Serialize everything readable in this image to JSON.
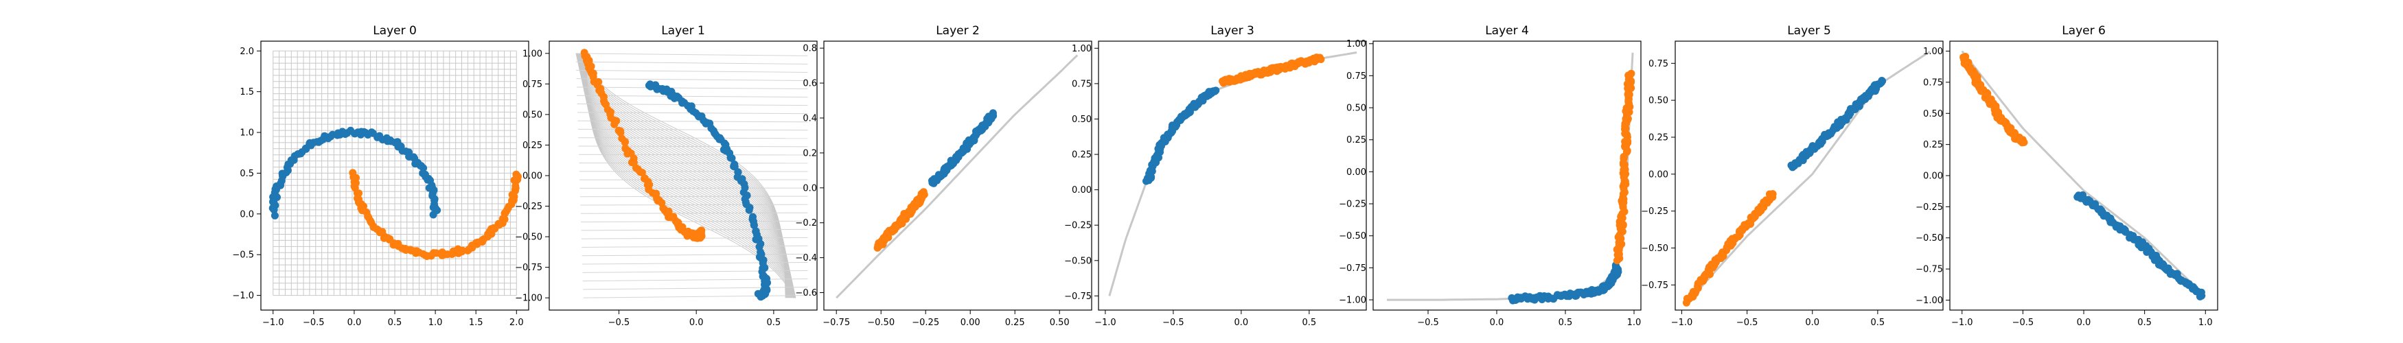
{
  "chart_data": [
    {
      "type": "scatter",
      "title": "Layer 0",
      "xlim": [
        -1.15,
        2.15
      ],
      "ylim": [
        -1.18,
        2.12
      ],
      "xticks": [
        -1.0,
        -0.5,
        0.0,
        0.5,
        1.0,
        1.5,
        2.0
      ],
      "yticks": [
        -1.0,
        -0.5,
        0.0,
        0.5,
        1.0,
        1.5,
        2.0
      ],
      "grid": {
        "x": [
          -1,
          2
        ],
        "y": [
          -1,
          2
        ],
        "n": 41
      },
      "curve": null,
      "series": [
        {
          "color": "#1f77b4",
          "shape": "upper_moon"
        },
        {
          "color": "#ff7f0e",
          "shape": "lower_moon"
        }
      ]
    },
    {
      "type": "scatter",
      "title": "Layer 1",
      "xlim": [
        -0.95,
        0.78
      ],
      "ylim": [
        -1.1,
        1.1
      ],
      "xticks": [
        -0.5,
        0.0,
        0.5
      ],
      "yticks": [
        -1.0,
        -0.75,
        -0.5,
        -0.25,
        0.0,
        0.25,
        0.5,
        0.75,
        1.0
      ],
      "grid": "warped",
      "series": [
        {
          "color": "#1f77b4",
          "x": [
            -0.31,
            -0.2,
            -0.1,
            0.0,
            0.1,
            0.18,
            0.25,
            0.31,
            0.36,
            0.4,
            0.43,
            0.45,
            0.44,
            0.41
          ],
          "y": [
            0.75,
            0.7,
            0.62,
            0.52,
            0.39,
            0.25,
            0.08,
            -0.12,
            -0.35,
            -0.55,
            -0.75,
            -0.9,
            -0.97,
            -0.98
          ]
        },
        {
          "color": "#ff7f0e",
          "x": [
            -0.72,
            -0.68,
            -0.62,
            -0.55,
            -0.47,
            -0.38,
            -0.29,
            -0.2,
            -0.12,
            -0.05,
            0.0,
            0.03,
            0.02
          ],
          "y": [
            0.99,
            0.88,
            0.7,
            0.5,
            0.28,
            0.06,
            -0.12,
            -0.28,
            -0.4,
            -0.48,
            -0.5,
            -0.49,
            -0.46
          ]
        }
      ]
    },
    {
      "type": "scatter",
      "title": "Layer 2",
      "xlim": [
        -0.82,
        0.68
      ],
      "ylim": [
        -0.7,
        0.84
      ],
      "xticks": [
        -0.75,
        -0.5,
        -0.25,
        0.0,
        0.25,
        0.5
      ],
      "yticks": [
        -0.6,
        -0.4,
        -0.2,
        0.0,
        0.2,
        0.4,
        0.6,
        0.8
      ],
      "curve": {
        "x": [
          -0.75,
          -0.5,
          -0.25,
          0.0,
          0.25,
          0.5,
          0.6
        ],
        "y": [
          -0.63,
          -0.37,
          -0.12,
          0.15,
          0.42,
          0.66,
          0.76
        ]
      },
      "series": [
        {
          "color": "#1f77b4",
          "x": [
            -0.22,
            -0.15,
            -0.08,
            0.0,
            0.07,
            0.13
          ],
          "y": [
            0.02,
            0.09,
            0.17,
            0.26,
            0.35,
            0.42
          ]
        },
        {
          "color": "#ff7f0e",
          "x": [
            -0.52,
            -0.45,
            -0.38,
            -0.31,
            -0.25
          ],
          "y": [
            -0.34,
            -0.26,
            -0.18,
            -0.1,
            -0.03
          ]
        }
      ]
    },
    {
      "type": "scatter",
      "title": "Layer 3",
      "xlim": [
        -1.05,
        0.92
      ],
      "ylim": [
        -0.85,
        1.05
      ],
      "xticks": [
        -1.0,
        -0.5,
        0.0,
        0.5
      ],
      "yticks": [
        -0.75,
        -0.5,
        -0.25,
        0.0,
        0.25,
        0.5,
        0.75,
        1.0
      ],
      "curve": {
        "x": [
          -0.97,
          -0.85,
          -0.7,
          -0.55,
          -0.4,
          -0.2,
          0.0,
          0.3,
          0.6,
          0.85
        ],
        "y": [
          -0.75,
          -0.35,
          0.05,
          0.37,
          0.56,
          0.7,
          0.77,
          0.85,
          0.93,
          0.97
        ]
      },
      "series": [
        {
          "color": "#1f77b4",
          "x": [
            -0.69,
            -0.64,
            -0.58,
            -0.5,
            -0.42,
            -0.34,
            -0.26,
            -0.19
          ],
          "y": [
            0.05,
            0.2,
            0.33,
            0.44,
            0.53,
            0.6,
            0.66,
            0.71
          ]
        },
        {
          "color": "#ff7f0e",
          "x": [
            -0.13,
            0.0,
            0.15,
            0.3,
            0.45,
            0.58
          ],
          "y": [
            0.76,
            0.79,
            0.83,
            0.86,
            0.9,
            0.93
          ]
        }
      ]
    },
    {
      "type": "scatter",
      "title": "Layer 4",
      "xlim": [
        -0.9,
        1.05
      ],
      "ylim": [
        -1.08,
        1.02
      ],
      "xticks": [
        -0.5,
        0.0,
        0.5,
        1.0
      ],
      "yticks": [
        -1.0,
        -0.75,
        -0.5,
        -0.25,
        0.0,
        0.25,
        0.5,
        0.75,
        1.0
      ],
      "curve": {
        "x": [
          -0.8,
          -0.4,
          0.0,
          0.4,
          0.7,
          0.85,
          0.92,
          0.95,
          0.97,
          0.99
        ],
        "y": [
          -1.0,
          -1.0,
          -0.995,
          -0.98,
          -0.93,
          -0.8,
          -0.5,
          0.0,
          0.5,
          0.93
        ]
      },
      "series": [
        {
          "color": "#1f77b4",
          "x": [
            0.1,
            0.3,
            0.5,
            0.65,
            0.75,
            0.82,
            0.86,
            0.88
          ],
          "y": [
            -0.99,
            -0.985,
            -0.97,
            -0.95,
            -0.92,
            -0.87,
            -0.8,
            -0.74
          ]
        },
        {
          "color": "#ff7f0e",
          "x": [
            0.88,
            0.9,
            0.92,
            0.93,
            0.94,
            0.95,
            0.96,
            0.97
          ],
          "y": [
            -0.7,
            -0.5,
            -0.25,
            0.0,
            0.2,
            0.4,
            0.6,
            0.76
          ]
        }
      ]
    },
    {
      "type": "scatter",
      "title": "Layer 5",
      "xlim": [
        -1.05,
        1.0
      ],
      "ylim": [
        -0.92,
        0.9
      ],
      "xticks": [
        -1.0,
        -0.5,
        0.0,
        0.5
      ],
      "yticks": [
        -0.75,
        -0.5,
        -0.25,
        0.0,
        0.25,
        0.5,
        0.75
      ],
      "curve": {
        "x": [
          -0.97,
          -0.5,
          0.0,
          0.5,
          0.9
        ],
        "y": [
          -0.88,
          -0.42,
          0.0,
          0.6,
          0.83
        ]
      },
      "series": [
        {
          "color": "#1f77b4",
          "x": [
            -0.15,
            -0.05,
            0.05,
            0.15,
            0.25,
            0.35,
            0.45,
            0.53
          ],
          "y": [
            0.05,
            0.13,
            0.21,
            0.29,
            0.38,
            0.47,
            0.56,
            0.63
          ]
        },
        {
          "color": "#ff7f0e",
          "x": [
            -0.95,
            -0.88,
            -0.78,
            -0.68,
            -0.58,
            -0.48,
            -0.38,
            -0.3
          ],
          "y": [
            -0.86,
            -0.76,
            -0.64,
            -0.53,
            -0.42,
            -0.32,
            -0.22,
            -0.13
          ]
        }
      ]
    },
    {
      "type": "scatter",
      "title": "Layer 6",
      "xlim": [
        -1.1,
        1.1
      ],
      "ylim": [
        -1.08,
        1.08
      ],
      "xticks": [
        -1.0,
        -0.5,
        0.0,
        0.5,
        1.0
      ],
      "yticks": [
        -1.0,
        -0.75,
        -0.5,
        -0.25,
        0.0,
        0.25,
        0.5,
        0.75,
        1.0
      ],
      "curve": {
        "x": [
          -1.0,
          -0.5,
          0.0,
          0.5,
          1.0
        ],
        "y": [
          1.0,
          0.38,
          -0.12,
          -0.5,
          -0.97
        ]
      },
      "series": [
        {
          "color": "#1f77b4",
          "x": [
            -0.05,
            0.1,
            0.2,
            0.3,
            0.42,
            0.5,
            0.6,
            0.7,
            0.8,
            0.9,
            0.97
          ],
          "y": [
            -0.15,
            -0.25,
            -0.33,
            -0.43,
            -0.5,
            -0.58,
            -0.67,
            -0.76,
            -0.84,
            -0.91,
            -0.96
          ]
        },
        {
          "color": "#ff7f0e",
          "x": [
            -0.99,
            -0.95,
            -0.9,
            -0.85,
            -0.8,
            -0.75,
            -0.7,
            -0.65,
            -0.6,
            -0.55,
            -0.5
          ],
          "y": [
            0.96,
            0.88,
            0.8,
            0.72,
            0.64,
            0.56,
            0.48,
            0.42,
            0.36,
            0.31,
            0.26
          ]
        }
      ]
    }
  ]
}
